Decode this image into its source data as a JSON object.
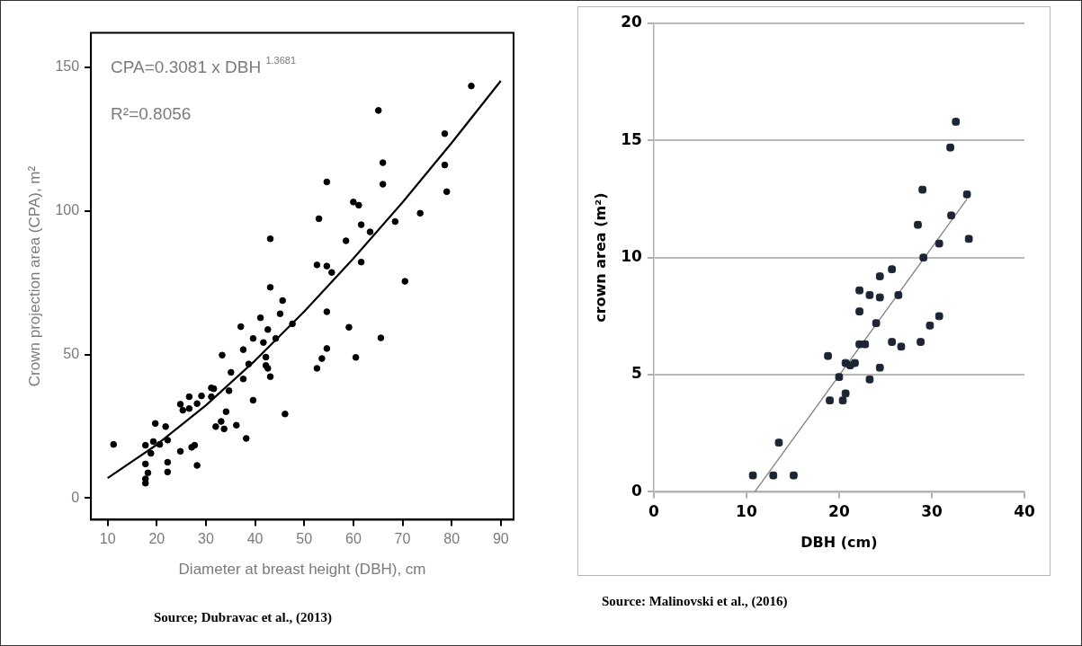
{
  "chart_data": [
    {
      "type": "scatter",
      "xlabel": "Diameter at breast height (DBH), cm",
      "ylabel": "Crown projection area (CPA), m²",
      "xlim": [
        6.6,
        92.6
      ],
      "ylim": [
        -7.5,
        162
      ],
      "xticks": [
        10,
        20,
        30,
        40,
        50,
        60,
        70,
        80,
        90
      ],
      "yticks": [
        0,
        50,
        100,
        150
      ],
      "grid": false,
      "legend": false,
      "annotations": [
        "CPA=0.3081 x DBH $^{1.3681}$",
        "R²=0.8056",
        "Source; Dubravac et al., (2013)"
      ],
      "series": [
        {
          "color": "#000000",
          "marker": "circle",
          "x": [
            11.2,
            17.7,
            17.7,
            18.2,
            17.7,
            17.7,
            18.8,
            19.3,
            19.7,
            20.6,
            21.8,
            22.2,
            22.2,
            22.2,
            24.8,
            24.8,
            25.3,
            26.6,
            26.6,
            27.1,
            27.7,
            28.2,
            28.2,
            29.1,
            31.1,
            31.6,
            31.1,
            32.0,
            33.1,
            33.7,
            34.1,
            33.3,
            34.7,
            35.1,
            36.2,
            37.1,
            37.6,
            37.6,
            38.2,
            38.7,
            39.6,
            39.6,
            41.1,
            41.7,
            42.2,
            42.2,
            42.6,
            43.1,
            42.6,
            43.1,
            43.1,
            44.2,
            45.1,
            45.6,
            46.1,
            47.6,
            52.6,
            52.6,
            53.0,
            53.6,
            54.6,
            54.6,
            54.6,
            54.6,
            55.6,
            58.5,
            59.1,
            60.0,
            60.5,
            61.1,
            61.6,
            61.6,
            63.4,
            65.1,
            65.6,
            66.0,
            66.0,
            68.5,
            70.5,
            73.6,
            78.6,
            78.6,
            79.0,
            84.0
          ],
          "values": [
            18.7,
            18.4,
            11.9,
            8.8,
            6.7,
            5.2,
            15.6,
            19.7,
            26.0,
            18.7,
            24.9,
            20.2,
            12.5,
            9.1,
            16.3,
            32.7,
            30.6,
            35.3,
            31.2,
            17.7,
            18.4,
            11.4,
            32.9,
            35.6,
            38.4,
            38.1,
            35.3,
            24.9,
            26.7,
            24.1,
            30.1,
            49.8,
            37.4,
            43.8,
            25.4,
            59.7,
            51.7,
            41.5,
            20.8,
            46.7,
            55.6,
            34.1,
            62.8,
            54.2,
            49.1,
            46.2,
            45.2,
            42.3,
            58.7,
            90.3,
            73.4,
            55.6,
            64.2,
            68.8,
            29.3,
            60.7,
            81.2,
            45.2,
            97.3,
            48.6,
            110.1,
            80.8,
            64.9,
            52.1,
            78.6,
            89.6,
            59.5,
            103.1,
            49.0,
            102.0,
            95.2,
            82.2,
            92.7,
            135.0,
            55.8,
            116.8,
            109.3,
            96.3,
            75.5,
            99.2,
            126.9,
            116.0,
            106.7,
            143.5
          ]
        },
        {
          "type": "line",
          "color": "#000000",
          "marker": "none",
          "x": [
            10,
            20,
            30,
            40,
            50,
            60,
            70,
            80,
            90
          ],
          "values": [
            7.0,
            18.6,
            32.3,
            47.9,
            65.0,
            83.4,
            103.0,
            123.7,
            145.3
          ]
        }
      ]
    },
    {
      "type": "scatter",
      "xlabel": "DBH (cm)",
      "ylabel": "crown area (m²)",
      "xlim": [
        0,
        40
      ],
      "ylim": [
        0,
        20
      ],
      "xticks": [
        0,
        10,
        20,
        30,
        40
      ],
      "yticks": [
        0,
        5,
        10,
        15,
        20
      ],
      "grid": "y",
      "legend": false,
      "annotations": [
        "Source: Malinovski et al., (2016)"
      ],
      "series": [
        {
          "color": "#1c2533",
          "marker": "square",
          "x": [
            10.7,
            12.9,
            13.5,
            15.1,
            18.8,
            19.0,
            20.0,
            20.4,
            20.7,
            20.7,
            21.2,
            21.7,
            22.2,
            22.2,
            22.2,
            22.8,
            23.3,
            23.3,
            24.0,
            24.4,
            24.4,
            24.4,
            25.7,
            25.7,
            26.4,
            26.7,
            28.5,
            28.8,
            29.0,
            29.1,
            29.8,
            30.8,
            30.8,
            32.0,
            32.1,
            32.6,
            33.8,
            34.0
          ],
          "values": [
            0.7,
            0.7,
            2.1,
            0.7,
            5.8,
            3.9,
            4.9,
            3.9,
            4.2,
            5.5,
            5.4,
            5.5,
            8.6,
            7.7,
            6.3,
            6.3,
            8.4,
            4.8,
            7.2,
            9.2,
            8.3,
            5.3,
            9.5,
            6.4,
            8.4,
            6.2,
            11.4,
            6.4,
            12.9,
            10.0,
            7.1,
            7.5,
            10.6,
            14.7,
            11.8,
            15.8,
            12.7,
            10.8
          ]
        },
        {
          "type": "line",
          "color": "#808080",
          "marker": "none",
          "x": [
            10.9,
            33.8
          ],
          "values": [
            0,
            12.5
          ]
        }
      ]
    }
  ]
}
